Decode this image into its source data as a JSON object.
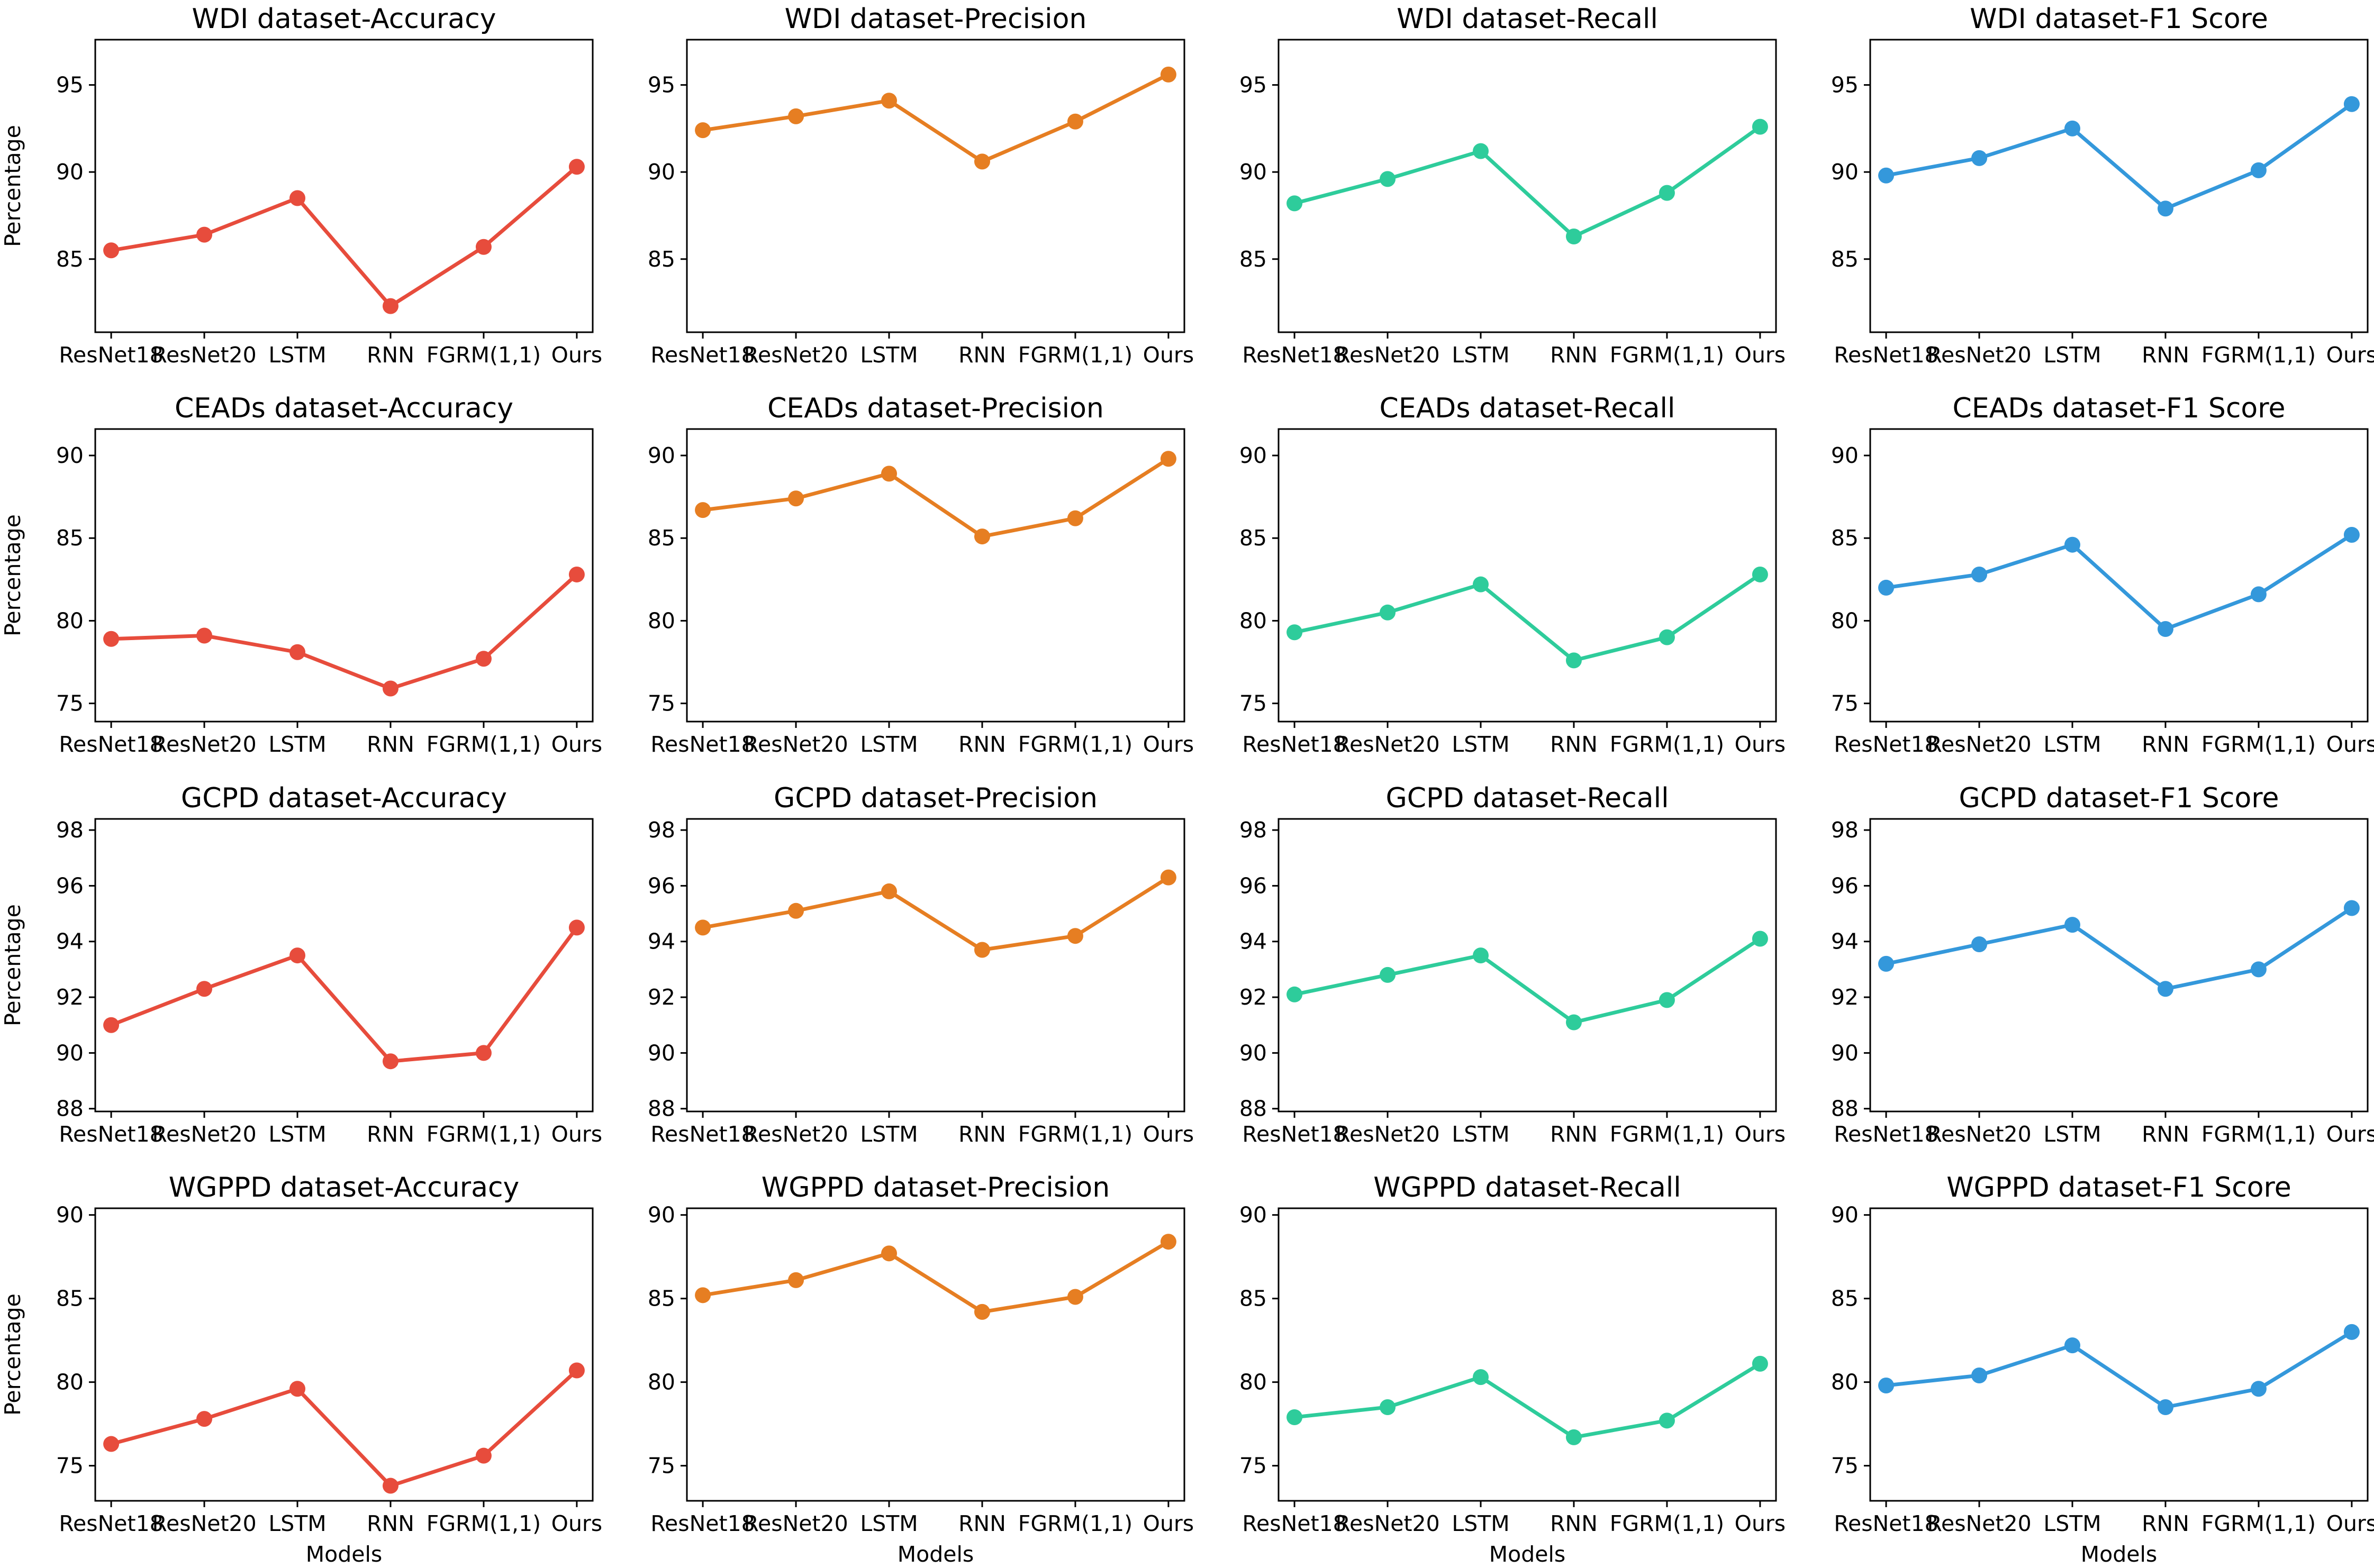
{
  "chart_data": [
    {
      "type": "line",
      "title": "WDI dataset-Accuracy",
      "categories": [
        "ResNet18",
        "ResNet20",
        "LSTM",
        "RNN",
        "FGRM(1,1)",
        "Ours"
      ],
      "values": [
        85.5,
        86.4,
        88.5,
        82.3,
        85.7,
        90.3
      ],
      "ylim": [
        80.8,
        97.6
      ],
      "yticks": [
        85,
        90,
        95
      ],
      "ylabel": "Percentage",
      "xlabel": "",
      "color": "#e74c3c"
    },
    {
      "type": "line",
      "title": "WDI dataset-Precision",
      "categories": [
        "ResNet18",
        "ResNet20",
        "LSTM",
        "RNN",
        "FGRM(1,1)",
        "Ours"
      ],
      "values": [
        92.4,
        93.2,
        94.1,
        90.6,
        92.9,
        95.6
      ],
      "ylim": [
        80.8,
        97.6
      ],
      "yticks": [
        85,
        90,
        95
      ],
      "ylabel": "",
      "xlabel": "",
      "color": "#e67e22"
    },
    {
      "type": "line",
      "title": "WDI dataset-Recall",
      "categories": [
        "ResNet18",
        "ResNet20",
        "LSTM",
        "RNN",
        "FGRM(1,1)",
        "Ours"
      ],
      "values": [
        88.2,
        89.6,
        91.2,
        86.3,
        88.8,
        92.6
      ],
      "ylim": [
        80.8,
        97.6
      ],
      "yticks": [
        85,
        90,
        95
      ],
      "ylabel": "",
      "xlabel": "",
      "color": "#2ecc9b"
    },
    {
      "type": "line",
      "title": "WDI dataset-F1 Score",
      "categories": [
        "ResNet18",
        "ResNet20",
        "LSTM",
        "RNN",
        "FGRM(1,1)",
        "Ours"
      ],
      "values": [
        89.8,
        90.8,
        92.5,
        87.9,
        90.1,
        93.9
      ],
      "ylim": [
        80.8,
        97.6
      ],
      "yticks": [
        85,
        90,
        95
      ],
      "ylabel": "",
      "xlabel": "",
      "color": "#3498db"
    },
    {
      "type": "line",
      "title": "CEADs dataset-Accuracy",
      "categories": [
        "ResNet18",
        "ResNet20",
        "LSTM",
        "RNN",
        "FGRM(1,1)",
        "Ours"
      ],
      "values": [
        78.9,
        79.1,
        78.1,
        75.9,
        77.7,
        82.8
      ],
      "ylim": [
        73.9,
        91.6
      ],
      "yticks": [
        75,
        80,
        85,
        90
      ],
      "ylabel": "Percentage",
      "xlabel": "",
      "color": "#e74c3c"
    },
    {
      "type": "line",
      "title": "CEADs dataset-Precision",
      "categories": [
        "ResNet18",
        "ResNet20",
        "LSTM",
        "RNN",
        "FGRM(1,1)",
        "Ours"
      ],
      "values": [
        86.7,
        87.4,
        88.9,
        85.1,
        86.2,
        89.8
      ],
      "ylim": [
        73.9,
        91.6
      ],
      "yticks": [
        75,
        80,
        85,
        90
      ],
      "ylabel": "",
      "xlabel": "",
      "color": "#e67e22"
    },
    {
      "type": "line",
      "title": "CEADs dataset-Recall",
      "categories": [
        "ResNet18",
        "ResNet20",
        "LSTM",
        "RNN",
        "FGRM(1,1)",
        "Ours"
      ],
      "values": [
        79.3,
        80.5,
        82.2,
        77.6,
        79.0,
        82.8
      ],
      "ylim": [
        73.9,
        91.6
      ],
      "yticks": [
        75,
        80,
        85,
        90
      ],
      "ylabel": "",
      "xlabel": "",
      "color": "#2ecc9b"
    },
    {
      "type": "line",
      "title": "CEADs dataset-F1 Score",
      "categories": [
        "ResNet18",
        "ResNet20",
        "LSTM",
        "RNN",
        "FGRM(1,1)",
        "Ours"
      ],
      "values": [
        82.0,
        82.8,
        84.6,
        79.5,
        81.6,
        85.2
      ],
      "ylim": [
        73.9,
        91.6
      ],
      "yticks": [
        75,
        80,
        85,
        90
      ],
      "ylabel": "",
      "xlabel": "",
      "color": "#3498db"
    },
    {
      "type": "line",
      "title": "GCPD dataset-Accuracy",
      "categories": [
        "ResNet18",
        "ResNet20",
        "LSTM",
        "RNN",
        "FGRM(1,1)",
        "Ours"
      ],
      "values": [
        91.0,
        92.3,
        93.5,
        89.7,
        90.0,
        94.5
      ],
      "ylim": [
        87.9,
        98.4
      ],
      "yticks": [
        88,
        90,
        92,
        94,
        96,
        98
      ],
      "ylabel": "Percentage",
      "xlabel": "",
      "color": "#e74c3c"
    },
    {
      "type": "line",
      "title": "GCPD dataset-Precision",
      "categories": [
        "ResNet18",
        "ResNet20",
        "LSTM",
        "RNN",
        "FGRM(1,1)",
        "Ours"
      ],
      "values": [
        94.5,
        95.1,
        95.8,
        93.7,
        94.2,
        96.3
      ],
      "ylim": [
        87.9,
        98.4
      ],
      "yticks": [
        88,
        90,
        92,
        94,
        96,
        98
      ],
      "ylabel": "",
      "xlabel": "",
      "color": "#e67e22"
    },
    {
      "type": "line",
      "title": "GCPD dataset-Recall",
      "categories": [
        "ResNet18",
        "ResNet20",
        "LSTM",
        "RNN",
        "FGRM(1,1)",
        "Ours"
      ],
      "values": [
        92.1,
        92.8,
        93.5,
        91.1,
        91.9,
        94.1
      ],
      "ylim": [
        87.9,
        98.4
      ],
      "yticks": [
        88,
        90,
        92,
        94,
        96,
        98
      ],
      "ylabel": "",
      "xlabel": "",
      "color": "#2ecc9b"
    },
    {
      "type": "line",
      "title": "GCPD dataset-F1 Score",
      "categories": [
        "ResNet18",
        "ResNet20",
        "LSTM",
        "RNN",
        "FGRM(1,1)",
        "Ours"
      ],
      "values": [
        93.2,
        93.9,
        94.6,
        92.3,
        93.0,
        95.2
      ],
      "ylim": [
        87.9,
        98.4
      ],
      "yticks": [
        88,
        90,
        92,
        94,
        96,
        98
      ],
      "ylabel": "",
      "xlabel": "",
      "color": "#3498db"
    },
    {
      "type": "line",
      "title": "WGPPD dataset-Accuracy",
      "categories": [
        "ResNet18",
        "ResNet20",
        "LSTM",
        "RNN",
        "FGRM(1,1)",
        "Ours"
      ],
      "values": [
        76.3,
        77.8,
        79.6,
        73.8,
        75.6,
        80.7
      ],
      "ylim": [
        72.9,
        90.4
      ],
      "yticks": [
        75,
        80,
        85,
        90
      ],
      "ylabel": "Percentage",
      "xlabel": "Models",
      "color": "#e74c3c"
    },
    {
      "type": "line",
      "title": "WGPPD dataset-Precision",
      "categories": [
        "ResNet18",
        "ResNet20",
        "LSTM",
        "RNN",
        "FGRM(1,1)",
        "Ours"
      ],
      "values": [
        85.2,
        86.1,
        87.7,
        84.2,
        85.1,
        88.4
      ],
      "ylim": [
        72.9,
        90.4
      ],
      "yticks": [
        75,
        80,
        85,
        90
      ],
      "ylabel": "",
      "xlabel": "Models",
      "color": "#e67e22"
    },
    {
      "type": "line",
      "title": "WGPPD dataset-Recall",
      "categories": [
        "ResNet18",
        "ResNet20",
        "LSTM",
        "RNN",
        "FGRM(1,1)",
        "Ours"
      ],
      "values": [
        77.9,
        78.5,
        80.3,
        76.7,
        77.7,
        81.1
      ],
      "ylim": [
        72.9,
        90.4
      ],
      "yticks": [
        75,
        80,
        85,
        90
      ],
      "ylabel": "",
      "xlabel": "Models",
      "color": "#2ecc9b"
    },
    {
      "type": "line",
      "title": "WGPPD dataset-F1 Score",
      "categories": [
        "ResNet18",
        "ResNet20",
        "LSTM",
        "RNN",
        "FGRM(1,1)",
        "Ours"
      ],
      "values": [
        79.8,
        80.4,
        82.2,
        78.5,
        79.6,
        83.0
      ],
      "ylim": [
        72.9,
        90.4
      ],
      "yticks": [
        75,
        80,
        85,
        90
      ],
      "ylabel": "",
      "xlabel": "Models",
      "color": "#3498db"
    }
  ]
}
